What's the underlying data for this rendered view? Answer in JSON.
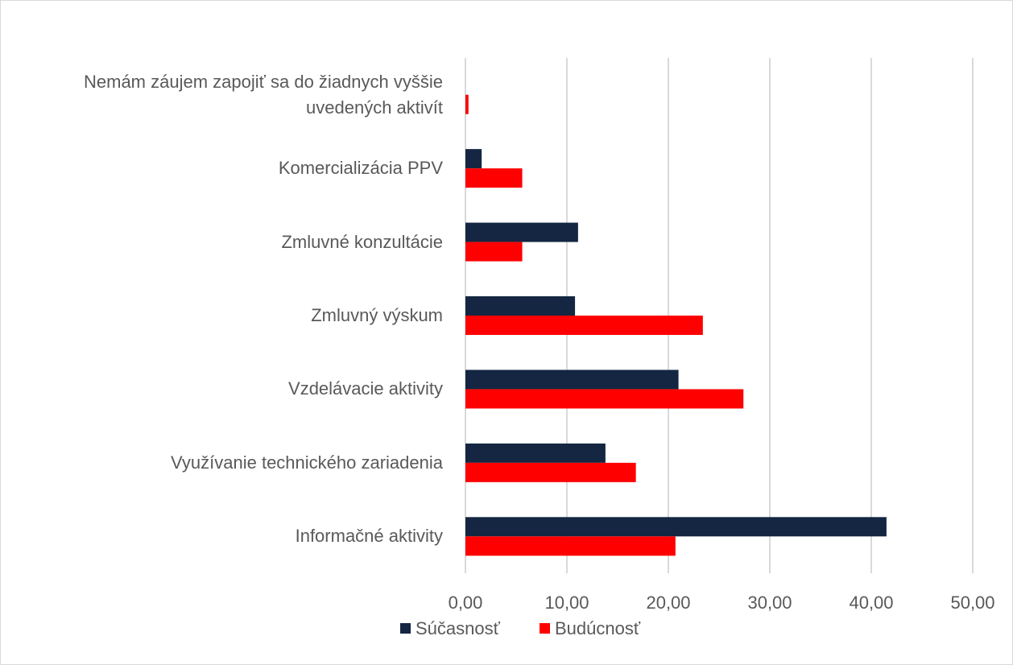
{
  "chart_data": {
    "type": "hbar",
    "categories": [
      "Nemám záujem zapojiť sa do žiadnych vyššie uvedených aktivít",
      "Komercializácia PPV",
      "Zmluvné konzultácie",
      "Zmluvný výskum",
      "Vzdelávacie aktivity",
      "Využívanie technického zariadenia",
      "Informačné aktivity"
    ],
    "series": [
      {
        "name": "Súčasnosť",
        "color": "#142641",
        "values": [
          0,
          1.6,
          11.1,
          10.8,
          21.0,
          13.8,
          41.5
        ]
      },
      {
        "name": "Budúcnosť",
        "color": "#ff0000",
        "values": [
          0.3,
          5.6,
          5.6,
          23.4,
          27.4,
          16.8,
          20.7
        ]
      }
    ],
    "xlim": [
      0,
      50
    ],
    "xticks": [
      {
        "value": 0,
        "label": "0,00"
      },
      {
        "value": 10,
        "label": "10,00"
      },
      {
        "value": 20,
        "label": "20,00"
      },
      {
        "value": 30,
        "label": "30,00"
      },
      {
        "value": 40,
        "label": "40,00"
      },
      {
        "value": 50,
        "label": "50,00"
      }
    ],
    "grid": true,
    "legend": "bottom"
  }
}
